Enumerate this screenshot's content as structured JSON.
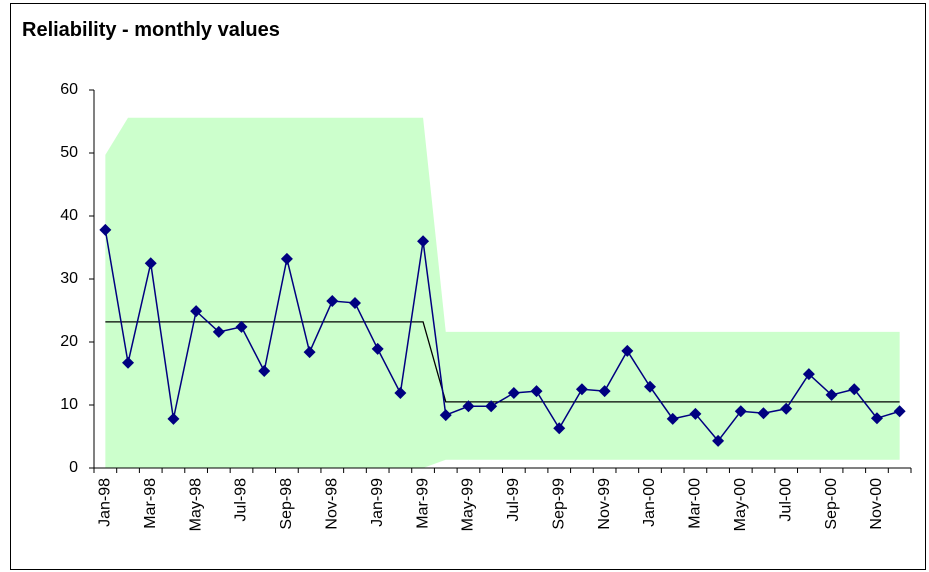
{
  "chart_data": {
    "type": "control",
    "title": "Reliability - monthly values",
    "categories": [
      "Jan-98",
      null,
      "Mar-98",
      null,
      "May-98",
      null,
      "Jul-98",
      null,
      "Sep-98",
      null,
      "Nov-98",
      null,
      "Jan-99",
      null,
      "Mar-99",
      null,
      "May-99",
      null,
      "Jul-99",
      null,
      "Sep-99",
      null,
      "Nov-99",
      null,
      "Jan-00",
      null,
      "Mar-00",
      null,
      "May-00",
      null,
      "Jul-00",
      null,
      "Sep-00",
      null,
      "Nov-00",
      null
    ],
    "values": [
      37.8,
      16.7,
      32.5,
      7.8,
      24.9,
      21.6,
      22.4,
      15.4,
      33.2,
      18.4,
      26.5,
      26.2,
      18.9,
      11.9,
      36.0,
      8.4,
      9.8,
      9.8,
      11.9,
      12.2,
      6.3,
      12.5,
      12.2,
      18.6,
      12.9,
      7.8,
      8.6,
      4.3,
      9.0,
      8.7,
      9.4,
      14.9,
      11.6,
      12.5,
      7.9,
      9.0
    ],
    "center_values": [
      23.2,
      23.2,
      23.2,
      23.2,
      23.2,
      23.2,
      23.2,
      23.2,
      23.2,
      23.2,
      23.2,
      23.2,
      23.2,
      23.2,
      23.2,
      10.5,
      10.5,
      10.5,
      10.5,
      10.5,
      10.5,
      10.5,
      10.5,
      10.5,
      10.5,
      10.5,
      10.5,
      10.5,
      10.5,
      10.5,
      10.5,
      10.5,
      10.5,
      10.5,
      10.5,
      10.5
    ],
    "upper_values": [
      49.7,
      55.6,
      55.6,
      55.6,
      55.6,
      55.6,
      55.6,
      55.6,
      55.6,
      55.6,
      55.6,
      55.6,
      55.6,
      55.6,
      55.6,
      21.6,
      21.6,
      21.6,
      21.6,
      21.6,
      21.6,
      21.6,
      21.6,
      21.6,
      21.6,
      21.6,
      21.6,
      21.6,
      21.6,
      21.6,
      21.6,
      21.6,
      21.6,
      21.6,
      21.6,
      21.6
    ],
    "lower_values": [
      0,
      0,
      0,
      0,
      0,
      0,
      0,
      0,
      0,
      0,
      0,
      0,
      0,
      0,
      0,
      1.3,
      1.3,
      1.3,
      1.3,
      1.3,
      1.3,
      1.3,
      1.3,
      1.3,
      1.3,
      1.3,
      1.3,
      1.3,
      1.3,
      1.3,
      1.3,
      1.3,
      1.3,
      1.3,
      1.3,
      1.3
    ],
    "color": "#000080",
    "center_color": "#000000",
    "band_color": "#ccffcc",
    "ylim": [
      0,
      60
    ],
    "yticks": [
      0,
      10,
      20,
      30,
      40,
      50,
      60
    ],
    "grid": false
  }
}
